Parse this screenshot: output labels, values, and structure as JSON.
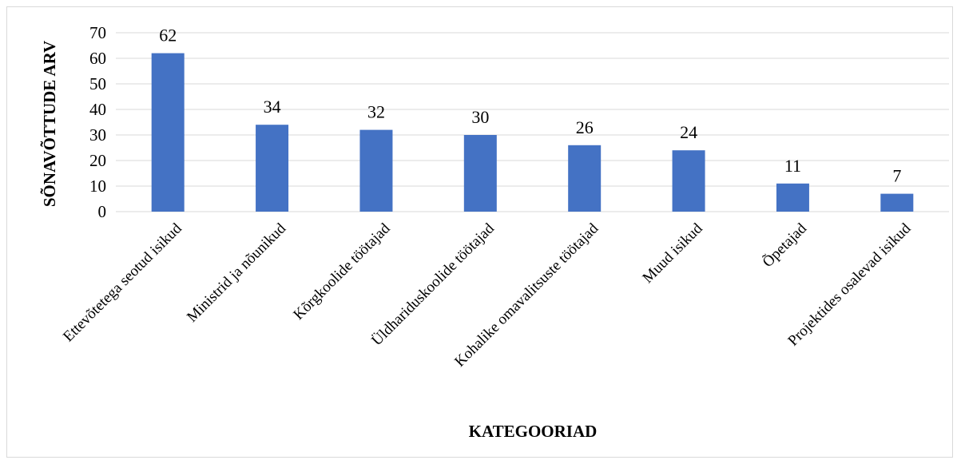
{
  "chart_data": {
    "type": "bar",
    "categories": [
      "Ettevõtetega seotud isikud",
      "Ministrid ja nõunikud",
      "Kõrgkoolide töötajad",
      "Üldhariduskoolide töötajad",
      "Kohalike omavalitsuste töötajad",
      "Muud isikud",
      "Õpetajad",
      "Projektides osalevad isikud"
    ],
    "values": [
      62,
      34,
      32,
      30,
      26,
      24,
      11,
      7
    ],
    "xlabel": "KATEGOORIAD",
    "ylabel": "SÕNAVÕTTUDE ARV",
    "ylim": [
      0,
      70
    ],
    "yticks": [
      0,
      10,
      20,
      30,
      40,
      50,
      60,
      70
    ],
    "grid": true,
    "bar_color": "#4472c4",
    "grid_color": "#d9d9d9",
    "data_labels": true
  }
}
